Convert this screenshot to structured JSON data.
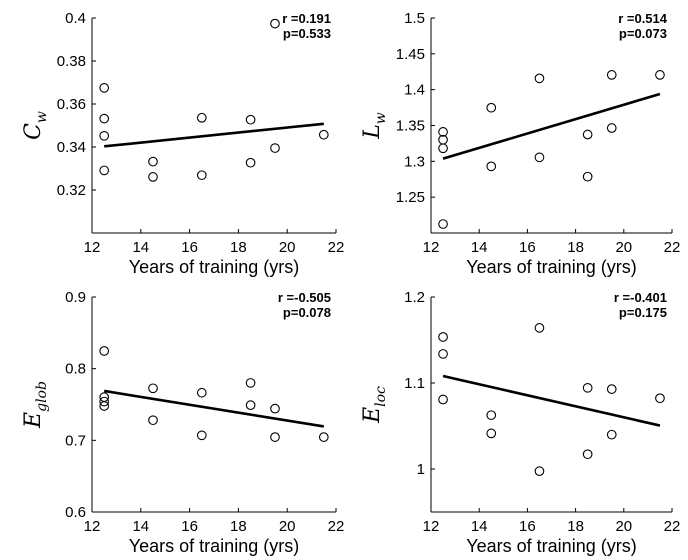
{
  "chart_data": [
    {
      "type": "scatter",
      "ylabel_main": "C",
      "ylabel_sub": "w",
      "xlabel": "Years of training (yrs)",
      "xlim": [
        12,
        22
      ],
      "ylim": [
        0.3,
        0.4
      ],
      "xticks": [
        12,
        14,
        16,
        18,
        20,
        22
      ],
      "yticks": [
        0.32,
        0.34,
        0.36,
        0.38,
        0.4
      ],
      "ytick_labels": [
        "0.32",
        "0.34",
        "0.36",
        "0.38",
        "0.4"
      ],
      "stat_r": "r =0.191",
      "stat_p": "p=0.533",
      "points": [
        {
          "x": 12.5,
          "y": 0.3675
        },
        {
          "x": 12.5,
          "y": 0.3532
        },
        {
          "x": 12.5,
          "y": 0.3452
        },
        {
          "x": 12.5,
          "y": 0.3291
        },
        {
          "x": 14.5,
          "y": 0.3332
        },
        {
          "x": 14.5,
          "y": 0.3261
        },
        {
          "x": 16.5,
          "y": 0.3536
        },
        {
          "x": 16.5,
          "y": 0.3269
        },
        {
          "x": 18.5,
          "y": 0.3527
        },
        {
          "x": 18.5,
          "y": 0.3327
        },
        {
          "x": 19.5,
          "y": 0.3974
        },
        {
          "x": 19.5,
          "y": 0.3395
        },
        {
          "x": 21.5,
          "y": 0.3457
        }
      ],
      "fit": {
        "x": [
          12.5,
          21.5
        ],
        "y": [
          0.3403,
          0.3508
        ]
      }
    },
    {
      "type": "scatter",
      "ylabel_main": "L",
      "ylabel_sub": "w",
      "xlabel": "Years of training (yrs)",
      "xlim": [
        12,
        22
      ],
      "ylim": [
        1.2,
        1.5
      ],
      "xticks": [
        12,
        14,
        16,
        18,
        20,
        22
      ],
      "yticks": [
        1.25,
        1.3,
        1.35,
        1.4,
        1.45,
        1.5
      ],
      "ytick_labels": [
        "1.25",
        "1.3",
        "1.35",
        "1.4",
        "1.45",
        "1.5"
      ],
      "stat_r": "r =0.514",
      "stat_p": "p=0.073",
      "points": [
        {
          "x": 12.5,
          "y": 1.3411
        },
        {
          "x": 12.5,
          "y": 1.3302
        },
        {
          "x": 12.5,
          "y": 1.3182
        },
        {
          "x": 12.5,
          "y": 1.2125
        },
        {
          "x": 14.5,
          "y": 1.3748
        },
        {
          "x": 14.5,
          "y": 1.293
        },
        {
          "x": 16.5,
          "y": 1.4158
        },
        {
          "x": 16.5,
          "y": 1.3056
        },
        {
          "x": 18.5,
          "y": 1.3374
        },
        {
          "x": 18.5,
          "y": 1.2786
        },
        {
          "x": 19.5,
          "y": 1.4206
        },
        {
          "x": 19.5,
          "y": 1.3465
        },
        {
          "x": 21.5,
          "y": 1.4206
        }
      ],
      "fit": {
        "x": [
          12.5,
          21.5
        ],
        "y": [
          1.3037,
          1.394
        ]
      }
    },
    {
      "type": "scatter",
      "ylabel_main": "E",
      "ylabel_sub": "glob",
      "xlabel": "Years of training (yrs)",
      "xlim": [
        12,
        22
      ],
      "ylim": [
        0.6,
        0.9
      ],
      "xticks": [
        12,
        14,
        16,
        18,
        20,
        22
      ],
      "yticks": [
        0.6,
        0.7,
        0.8,
        0.9
      ],
      "ytick_labels": [
        "0.6",
        "0.7",
        "0.8",
        "0.9"
      ],
      "stat_r": "r =-0.505",
      "stat_p": "p=0.078",
      "points": [
        {
          "x": 12.5,
          "y": 0.8247
        },
        {
          "x": 12.5,
          "y": 0.7603
        },
        {
          "x": 12.5,
          "y": 0.7541
        },
        {
          "x": 12.5,
          "y": 0.7479
        },
        {
          "x": 14.5,
          "y": 0.7726
        },
        {
          "x": 14.5,
          "y": 0.7281
        },
        {
          "x": 16.5,
          "y": 0.7664
        },
        {
          "x": 16.5,
          "y": 0.707
        },
        {
          "x": 18.5,
          "y": 0.7801
        },
        {
          "x": 18.5,
          "y": 0.7491
        },
        {
          "x": 19.5,
          "y": 0.7442
        },
        {
          "x": 19.5,
          "y": 0.7045
        },
        {
          "x": 21.5,
          "y": 0.7045
        }
      ],
      "fit": {
        "x": [
          12.5,
          21.5
        ],
        "y": [
          0.7689,
          0.7194
        ]
      }
    },
    {
      "type": "scatter",
      "ylabel_main": "E",
      "ylabel_sub": "loc",
      "xlabel": "Years of training (yrs)",
      "xlim": [
        12,
        22
      ],
      "ylim": [
        0.95,
        1.2
      ],
      "xticks": [
        12,
        14,
        16,
        18,
        20,
        22
      ],
      "yticks": [
        1.0,
        1.1,
        1.2
      ],
      "ytick_labels": [
        "1",
        "1.1",
        "1.2"
      ],
      "stat_r": "r =-0.401",
      "stat_p": "p=0.175",
      "points": [
        {
          "x": 12.5,
          "y": 1.1535
        },
        {
          "x": 12.5,
          "y": 1.1338
        },
        {
          "x": 12.5,
          "y": 1.0808
        },
        {
          "x": 14.5,
          "y": 1.0626
        },
        {
          "x": 14.5,
          "y": 1.0414
        },
        {
          "x": 16.5,
          "y": 1.1641
        },
        {
          "x": 16.5,
          "y": 0.9975
        },
        {
          "x": 18.5,
          "y": 1.0944
        },
        {
          "x": 18.5,
          "y": 1.0172
        },
        {
          "x": 19.5,
          "y": 1.0929
        },
        {
          "x": 19.5,
          "y": 1.0399
        },
        {
          "x": 21.5,
          "y": 1.0823
        }
      ],
      "fit": {
        "x": [
          12.5,
          21.5
        ],
        "y": [
          1.1081,
          1.0505
        ]
      }
    }
  ]
}
